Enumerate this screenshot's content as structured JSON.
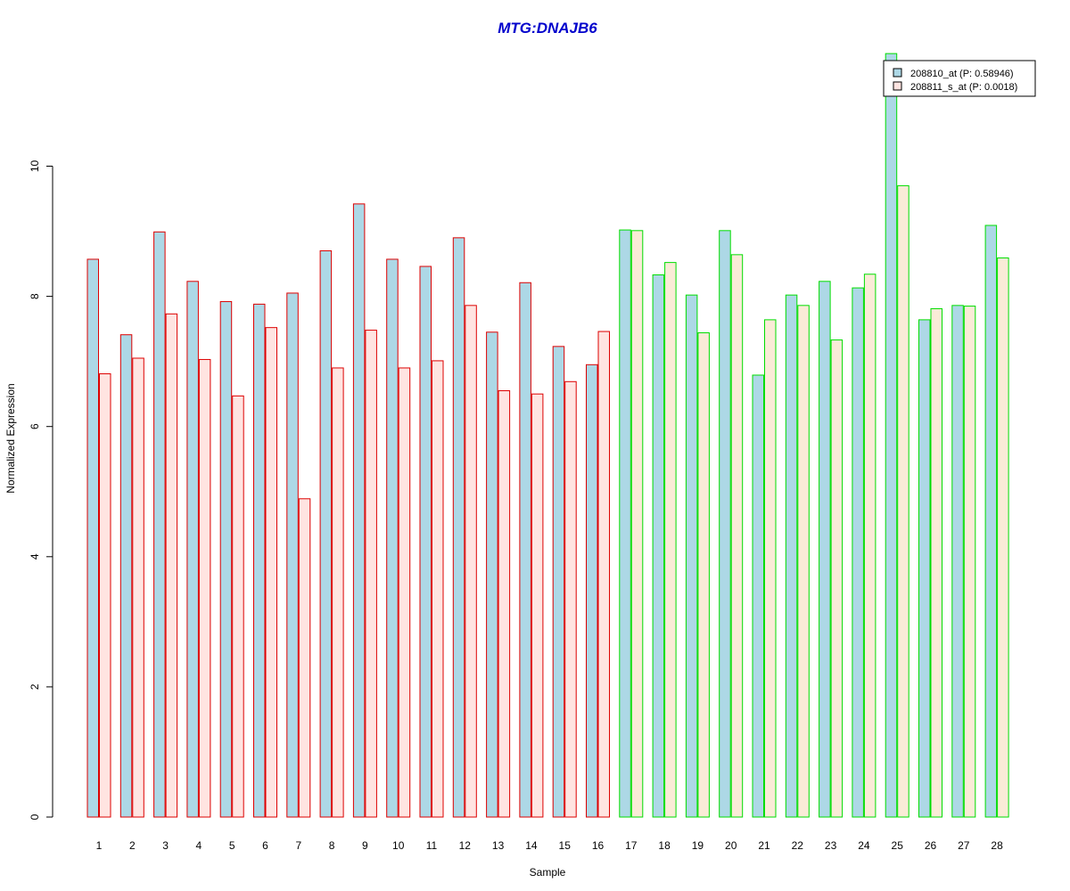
{
  "chart_data": {
    "type": "bar",
    "title": "MTG:DNAJB6",
    "xlabel": "Sample",
    "ylabel": "Normalized Expression",
    "ylim": [
      0,
      11.8
    ],
    "yticks": [
      "0",
      "2",
      "4",
      "6",
      "8",
      "10"
    ],
    "categories": [
      "1",
      "2",
      "3",
      "4",
      "5",
      "6",
      "7",
      "8",
      "9",
      "10",
      "11",
      "12",
      "13",
      "14",
      "15",
      "16",
      "17",
      "18",
      "19",
      "20",
      "21",
      "22",
      "23",
      "24",
      "25",
      "26",
      "27",
      "28"
    ],
    "group_border_colors": [
      "#dd0000",
      "#dd0000",
      "#dd0000",
      "#dd0000",
      "#dd0000",
      "#dd0000",
      "#dd0000",
      "#dd0000",
      "#dd0000",
      "#dd0000",
      "#dd0000",
      "#dd0000",
      "#dd0000",
      "#dd0000",
      "#dd0000",
      "#dd0000",
      "#00dd00",
      "#00dd00",
      "#00dd00",
      "#00dd00",
      "#00dd00",
      "#00dd00",
      "#00dd00",
      "#00dd00",
      "#00dd00",
      "#00dd00",
      "#00dd00",
      "#00dd00"
    ],
    "series": [
      {
        "name": "208810_at (P: 0.58946)",
        "color": "#add8e6",
        "values": [
          8.57,
          7.41,
          8.99,
          8.23,
          7.92,
          7.88,
          8.05,
          8.7,
          9.42,
          8.57,
          8.46,
          8.9,
          7.45,
          8.21,
          7.23,
          6.95,
          9.02,
          8.33,
          8.02,
          9.01,
          6.79,
          8.02,
          8.23,
          8.13,
          11.73,
          7.64,
          7.86,
          9.09
        ]
      },
      {
        "name": "208811_s_at (P: 0.0018)",
        "color": "#ffe4e1",
        "values": [
          6.81,
          7.05,
          7.73,
          7.03,
          6.47,
          7.52,
          4.89,
          6.9,
          7.48,
          6.9,
          7.01,
          7.86,
          6.55,
          6.5,
          6.69,
          7.46,
          9.01,
          8.52,
          7.44,
          8.64,
          7.64,
          7.86,
          7.33,
          8.34,
          9.7,
          7.81,
          7.85,
          8.59
        ]
      }
    ],
    "legend_position": "top-right",
    "colors": {
      "title": "#0000cc",
      "group_a_border": "#dd0000",
      "group_b_border": "#00dd00",
      "group_b_series2_fill": "#faebd7"
    }
  }
}
